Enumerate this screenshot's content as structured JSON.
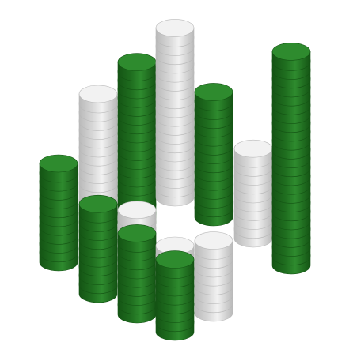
{
  "illustration": {
    "subject": "stacked-coin-columns",
    "colors": {
      "green_top": "#2e8b2e",
      "green_side": "#1f6e1f",
      "green_dark": "#145414",
      "white_top": "#f2f2f2",
      "white_side": "#d7d7d7",
      "white_dark": "#b9b9b9",
      "background": "#ffffff"
    },
    "stacks": [
      {
        "name": "stack-1",
        "color": "green",
        "coins": 11
      },
      {
        "name": "stack-2",
        "color": "white",
        "coins": 16
      },
      {
        "name": "stack-3",
        "color": "green",
        "coins": 18
      },
      {
        "name": "stack-4",
        "color": "white",
        "coins": 19
      },
      {
        "name": "stack-5",
        "color": "green",
        "coins": 14
      },
      {
        "name": "stack-6",
        "color": "white",
        "coins": 10
      },
      {
        "name": "stack-7",
        "color": "green",
        "coins": 24
      },
      {
        "name": "stack-8",
        "color": "white",
        "coins": 7
      },
      {
        "name": "stack-9",
        "color": "green",
        "coins": 10
      },
      {
        "name": "stack-10",
        "color": "white",
        "coins": 8
      },
      {
        "name": "stack-11",
        "color": "green",
        "coins": 9
      },
      {
        "name": "stack-12",
        "color": "white",
        "coins": 6
      },
      {
        "name": "stack-13",
        "color": "green",
        "coins": 8
      }
    ]
  }
}
